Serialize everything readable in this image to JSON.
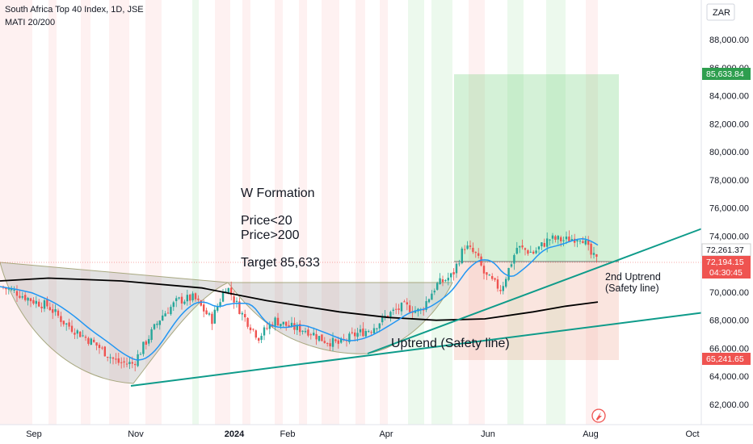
{
  "header": {
    "title": "South Africa Top 40 Index, 1D, JSE",
    "indicator": "MATI 20/200",
    "currency": "ZAR"
  },
  "chart_data": {
    "type": "candlestick",
    "y_ticks": [
      "88,000.00",
      "86,000.00",
      "84,000.00",
      "82,000.00",
      "80,000.00",
      "78,000.00",
      "76,000.00",
      "74,000.00",
      "70,000.00",
      "68,000.00",
      "66,000.00",
      "64,000.00",
      "62,000.00"
    ],
    "x_ticks": [
      "Sep",
      "Nov",
      "2024",
      "Feb",
      "Apr",
      "Jun",
      "Aug",
      "Oct"
    ],
    "price_labels": {
      "target": "85,633.84",
      "last_close": "72,261.37",
      "current": "72,194.15",
      "countdown": "04:30:45",
      "stop": "65,241.65"
    },
    "annotations": {
      "w_formation": "W Formation",
      "cond1": "Price<20",
      "cond2": "Price>200",
      "target": "Target 85,633",
      "uptrend": "Uptrend (Safety line)",
      "uptrend2_line1": "2nd Uptrend",
      "uptrend2_line2": "(Safety line)"
    },
    "colors": {
      "up": "#26a69a",
      "down": "#ef5350",
      "ma20": "#2196f3",
      "ma200": "#000000",
      "trendline": "#0e9b8a",
      "target_box": "#c8ecd0",
      "stop_box": "#f8ded8"
    }
  }
}
